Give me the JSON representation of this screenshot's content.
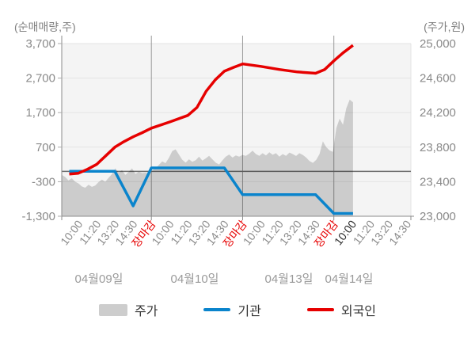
{
  "chart_data": {
    "type": "area+line",
    "left_axis": {
      "title": "(순매매량,주)",
      "min": -1300,
      "max": 3700,
      "tick_labels": [
        "3,700",
        "2,700",
        "1,700",
        "700",
        "-300",
        "-1,300"
      ]
    },
    "right_axis": {
      "title": "(주가,원)",
      "min": 23000,
      "max": 25000,
      "tick_labels": [
        "25,000",
        "24,600",
        "24,200",
        "23,800",
        "23,400",
        "23,000"
      ]
    },
    "x_axis": {
      "tick_labels": [
        {
          "label": "10:00",
          "style": "normal"
        },
        {
          "label": "11:20",
          "style": "normal"
        },
        {
          "label": "13:20",
          "style": "normal"
        },
        {
          "label": "14:30",
          "style": "normal"
        },
        {
          "label": "장마감",
          "style": "close"
        },
        {
          "label": "10:00",
          "style": "normal"
        },
        {
          "label": "11:20",
          "style": "normal"
        },
        {
          "label": "13:20",
          "style": "normal"
        },
        {
          "label": "14:30",
          "style": "normal"
        },
        {
          "label": "장마감",
          "style": "close"
        },
        {
          "label": "10:00",
          "style": "normal"
        },
        {
          "label": "11:20",
          "style": "normal"
        },
        {
          "label": "13:20",
          "style": "normal"
        },
        {
          "label": "14:30",
          "style": "normal"
        },
        {
          "label": "장마감",
          "style": "close"
        },
        {
          "label": "10:00",
          "style": "current"
        },
        {
          "label": "11:20",
          "style": "normal"
        },
        {
          "label": "13:20",
          "style": "normal"
        },
        {
          "label": "14:30",
          "style": "normal"
        }
      ],
      "date_labels": [
        "04월09일",
        "04월10일",
        "04월13일",
        "04월14일"
      ]
    },
    "series": [
      {
        "name": "주가",
        "type": "area",
        "axis": "right",
        "color": "#cdcdcd",
        "u_start": -0.91,
        "u_end": 15.05,
        "prices": [
          23480,
          23455,
          23415,
          23440,
          23400,
          23380,
          23345,
          23330,
          23365,
          23340,
          23355,
          23395,
          23425,
          23400,
          23445,
          23490,
          23555,
          23505,
          23535,
          23480,
          23515,
          23555,
          23490,
          23515,
          23500,
          23505,
          23495,
          23530,
          23555,
          23595,
          23635,
          23615,
          23675,
          23755,
          23775,
          23715,
          23655,
          23620,
          23660,
          23630,
          23650,
          23690,
          23645,
          23670,
          23700,
          23660,
          23620,
          23600,
          23648,
          23690,
          23715,
          23680,
          23705,
          23690,
          23710,
          23700,
          23725,
          23760,
          23720,
          23700,
          23730,
          23705,
          23740,
          23712,
          23730,
          23690,
          23720,
          23700,
          23738,
          23720,
          23698,
          23730,
          23710,
          23680,
          23640,
          23618,
          23652,
          23720,
          23868,
          23800,
          23762,
          23745,
          24020,
          24130,
          24060,
          24250,
          24350,
          24320
        ]
      },
      {
        "name": "기관",
        "type": "line",
        "axis": "left",
        "color": "#0a84cc",
        "points": [
          [
            -0.5,
            0
          ],
          [
            2,
            0
          ],
          [
            3,
            -1000
          ],
          [
            4,
            100
          ],
          [
            8,
            100
          ],
          [
            9,
            -675
          ],
          [
            13,
            -675
          ],
          [
            14,
            -1220
          ],
          [
            15.05,
            -1220
          ]
        ]
      },
      {
        "name": "외국인",
        "type": "line",
        "axis": "left",
        "color": "#e60000",
        "points": [
          [
            -0.5,
            -80
          ],
          [
            0,
            -55
          ],
          [
            0.5,
            60
          ],
          [
            1,
            200
          ],
          [
            1.5,
            450
          ],
          [
            2,
            700
          ],
          [
            2.5,
            860
          ],
          [
            3,
            1000
          ],
          [
            3.5,
            1120
          ],
          [
            4,
            1250
          ],
          [
            5,
            1430
          ],
          [
            6,
            1620
          ],
          [
            6.5,
            1850
          ],
          [
            7,
            2320
          ],
          [
            7.5,
            2650
          ],
          [
            8,
            2900
          ],
          [
            8.5,
            3010
          ],
          [
            9,
            3110
          ],
          [
            10,
            3040
          ],
          [
            11,
            2950
          ],
          [
            12,
            2880
          ],
          [
            13,
            2840
          ],
          [
            13.5,
            2950
          ],
          [
            14,
            3200
          ],
          [
            14.5,
            3430
          ],
          [
            15.05,
            3650
          ]
        ]
      }
    ],
    "legend": [
      {
        "label": "주가",
        "swatch": "area",
        "color": "#cdcdcd"
      },
      {
        "label": "기관",
        "swatch": "line",
        "color": "#0a84cc"
      },
      {
        "label": "외국인",
        "swatch": "line",
        "color": "#e60000"
      }
    ]
  }
}
